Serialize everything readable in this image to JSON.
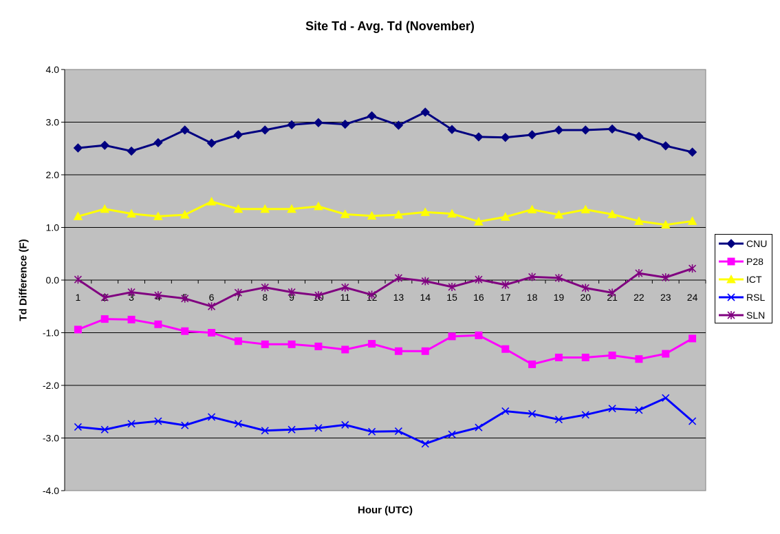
{
  "chart_data": {
    "type": "line",
    "title": "Site Td - Avg. Td (November)",
    "xlabel": "Hour (UTC)",
    "ylabel": "Td Difference (F)",
    "ylim": [
      -4.0,
      4.0
    ],
    "ytick_step": 1.0,
    "y_tick_labels": [
      "-4.0",
      "-3.0",
      "-2.0",
      "-1.0",
      "0.0",
      "1.0",
      "2.0",
      "3.0",
      "4.0"
    ],
    "categories": [
      "1",
      "2",
      "3",
      "4",
      "5",
      "6",
      "7",
      "8",
      "9",
      "10",
      "11",
      "12",
      "13",
      "14",
      "15",
      "16",
      "17",
      "18",
      "19",
      "20",
      "21",
      "22",
      "23",
      "24"
    ],
    "grid": true,
    "legend_position": "right",
    "plot_background": "#c0c0c0",
    "series": [
      {
        "name": "CNU",
        "color": "#000080",
        "marker": "diamond",
        "values": [
          2.51,
          2.56,
          2.45,
          2.61,
          2.85,
          2.6,
          2.76,
          2.85,
          2.95,
          2.99,
          2.96,
          3.12,
          2.94,
          3.19,
          2.86,
          2.72,
          2.71,
          2.76,
          2.85,
          2.85,
          2.87,
          2.73,
          2.55,
          2.43
        ]
      },
      {
        "name": "P28",
        "color": "#ff00ff",
        "marker": "square",
        "values": [
          -0.94,
          -0.74,
          -0.75,
          -0.84,
          -0.97,
          -1.0,
          -1.16,
          -1.22,
          -1.22,
          -1.26,
          -1.32,
          -1.21,
          -1.35,
          -1.35,
          -1.07,
          -1.05,
          -1.31,
          -1.6,
          -1.47,
          -1.47,
          -1.43,
          -1.5,
          -1.4,
          -1.11
        ]
      },
      {
        "name": "ICT",
        "color": "#ffff00",
        "marker": "triangle",
        "values": [
          1.21,
          1.35,
          1.26,
          1.21,
          1.24,
          1.49,
          1.35,
          1.35,
          1.35,
          1.4,
          1.25,
          1.22,
          1.24,
          1.29,
          1.26,
          1.11,
          1.2,
          1.34,
          1.24,
          1.34,
          1.25,
          1.12,
          1.05,
          1.12
        ]
      },
      {
        "name": "RSL",
        "color": "#0000ff",
        "marker": "x",
        "values": [
          -2.79,
          -2.84,
          -2.73,
          -2.68,
          -2.76,
          -2.6,
          -2.73,
          -2.86,
          -2.84,
          -2.81,
          -2.75,
          -2.88,
          -2.87,
          -3.11,
          -2.93,
          -2.8,
          -2.49,
          -2.54,
          -2.65,
          -2.56,
          -2.44,
          -2.47,
          -2.24,
          -2.68
        ]
      },
      {
        "name": "SLN",
        "color": "#800080",
        "marker": "star",
        "values": [
          0.01,
          -0.33,
          -0.23,
          -0.29,
          -0.35,
          -0.5,
          -0.24,
          -0.14,
          -0.23,
          -0.29,
          -0.14,
          -0.28,
          0.04,
          -0.02,
          -0.13,
          0.01,
          -0.09,
          0.06,
          0.04,
          -0.15,
          -0.24,
          0.13,
          0.05,
          0.22
        ]
      }
    ]
  }
}
